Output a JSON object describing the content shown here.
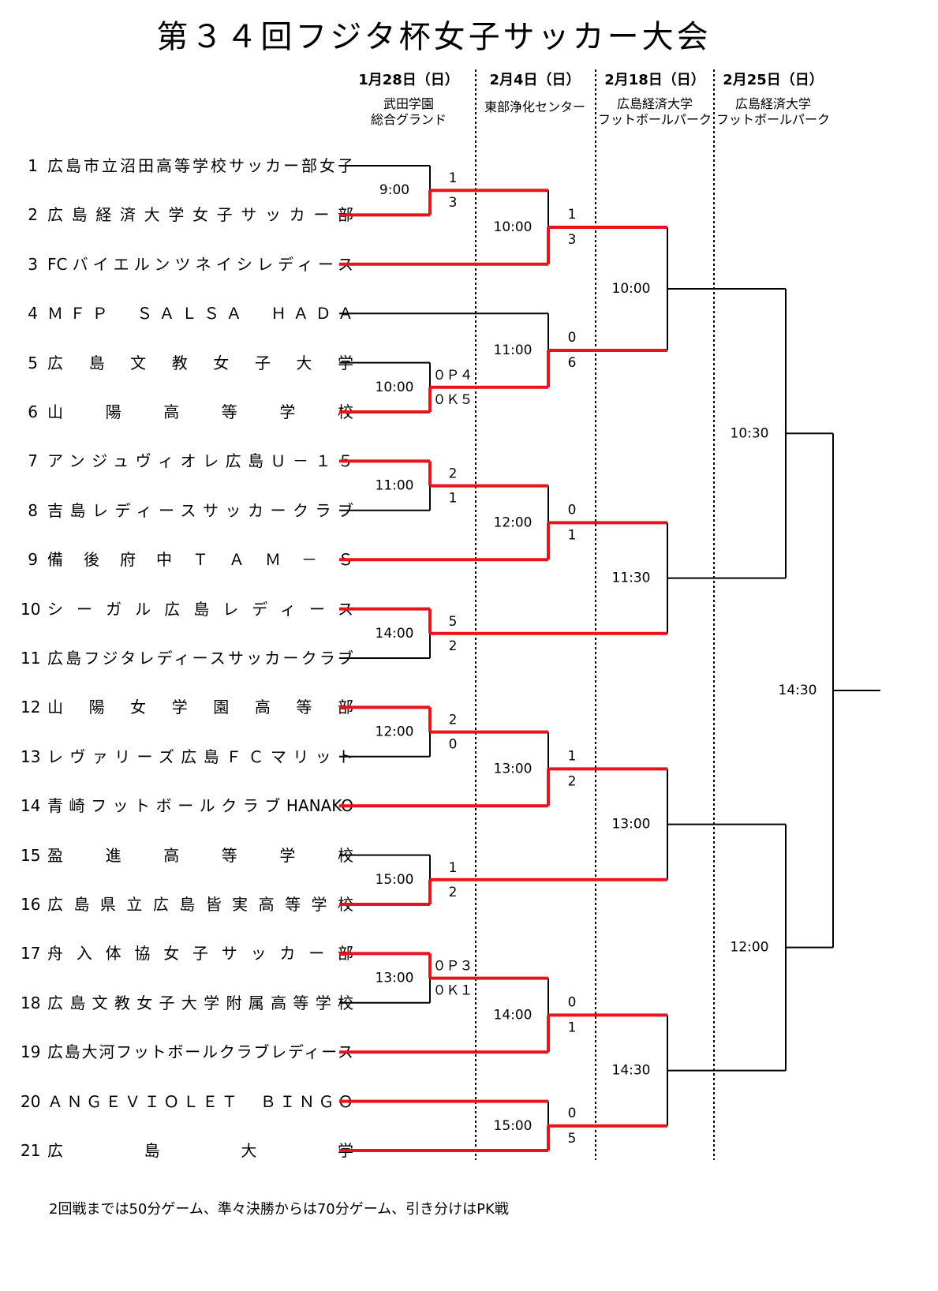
{
  "title": "第３４回フジタ杯女子サッカー大会",
  "rounds": [
    {
      "date": "1月28日（日）",
      "venue_lines": [
        "武田学園",
        "総合グランド"
      ]
    },
    {
      "date": "2月4日（日）",
      "venue_lines": [
        "東部浄化センター"
      ]
    },
    {
      "date": "2月18日（日）",
      "venue_lines": [
        "広島経済大学",
        "フットボールパーク"
      ]
    },
    {
      "date": "2月25日（日）",
      "venue_lines": [
        "広島経済大学",
        "フットボールパーク"
      ]
    }
  ],
  "teams": [
    {
      "num": "1",
      "name": "広島市立沼田高等学校サッカー部女子"
    },
    {
      "num": "2",
      "name": "広島経済大学女子サッカー部"
    },
    {
      "num": "3",
      "name": "FCバイエルンツネイシレディース"
    },
    {
      "num": "4",
      "name": "ＭＦＰ　ＳＡＬＳＡ　ＨＡＤＡ"
    },
    {
      "num": "5",
      "name": "広島文教女子大学"
    },
    {
      "num": "6",
      "name": "山陽高等学校"
    },
    {
      "num": "7",
      "name": "アンジュヴィオレ広島Ｕ－１５"
    },
    {
      "num": "8",
      "name": "吉島レディースサッカークラブ"
    },
    {
      "num": "9",
      "name": "備後府中ＴＡＭ－Ｓ"
    },
    {
      "num": "10",
      "name": "シーガル広島レディース"
    },
    {
      "num": "11",
      "name": "広島フジタレディースサッカークラブ"
    },
    {
      "num": "12",
      "name": "山陽女学園高等部"
    },
    {
      "num": "13",
      "name": "レヴァリーズ広島ＦＣマリット"
    },
    {
      "num": "14",
      "name": "青崎フットボールクラブHANAKO"
    },
    {
      "num": "15",
      "name": "盈進高等学校"
    },
    {
      "num": "16",
      "name": "広島県立広島皆実高等学校"
    },
    {
      "num": "17",
      "name": "舟入体協女子サッカー部"
    },
    {
      "num": "18",
      "name": "広島文教女子大学附属高等学校"
    },
    {
      "num": "19",
      "name": "広島大河フットボールクラブレディース"
    },
    {
      "num": "20",
      "name": "ＡＮＧＥＶＩＯＬＥＴ　ＢＩＮＧＯ"
    },
    {
      "num": "21",
      "name": "広島大学"
    }
  ],
  "round1_matches": [
    {
      "time": "9:00",
      "score_top": "1",
      "score_bottom": "3"
    },
    {
      "time": "10:00",
      "score_top": "０Ｐ４",
      "score_bottom": "０Ｋ５"
    },
    {
      "time": "11:00",
      "score_top": "2",
      "score_bottom": "1"
    },
    {
      "time": "14:00",
      "score_top": "5",
      "score_bottom": "2"
    },
    {
      "time": "12:00",
      "score_top": "2",
      "score_bottom": "0"
    },
    {
      "time": "15:00",
      "score_top": "1",
      "score_bottom": "2"
    },
    {
      "time": "13:00",
      "score_top": "０Ｐ３",
      "score_bottom": "０Ｋ１"
    }
  ],
  "round2_matches": [
    {
      "time": "10:00",
      "score_top": "1",
      "score_bottom": "3"
    },
    {
      "time": "11:00",
      "score_top": "0",
      "score_bottom": "6"
    },
    {
      "time": "12:00",
      "score_top": "0",
      "score_bottom": "1"
    },
    {
      "time": "13:00",
      "score_top": "1",
      "score_bottom": "2"
    },
    {
      "time": "14:00",
      "score_top": "0",
      "score_bottom": "1"
    },
    {
      "time": "15:00",
      "score_top": "0",
      "score_bottom": "5"
    }
  ],
  "round3_matches": [
    {
      "time": "10:00"
    },
    {
      "time": "11:30"
    },
    {
      "time": "13:00"
    },
    {
      "time": "14:30"
    }
  ],
  "semifinals": [
    {
      "time": "10:30"
    },
    {
      "time": "12:00"
    }
  ],
  "final": {
    "time": "14:30"
  },
  "note": "2回戦までは50分ゲーム、準々決勝からは70分ゲーム、引き分けはPK戦",
  "colors": {
    "winner_line": "#e8141a",
    "line": "#000000",
    "divider": "#000000"
  }
}
